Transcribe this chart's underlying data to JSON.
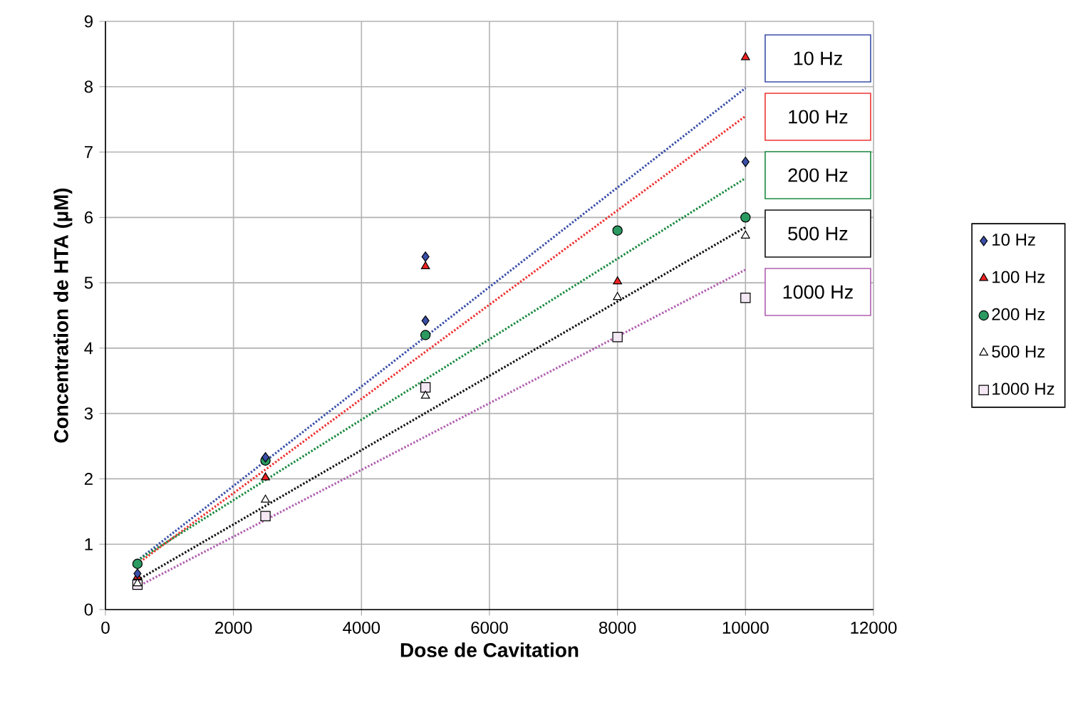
{
  "chart_data": {
    "type": "scatter",
    "xlabel": "Dose de Cavitation",
    "ylabel": "Concentration de HTA (µM)",
    "xlim": [
      0,
      12000
    ],
    "ylim": [
      0,
      9
    ],
    "xticks": [
      0,
      2000,
      4000,
      6000,
      8000,
      10000,
      12000
    ],
    "yticks": [
      0,
      1,
      2,
      3,
      4,
      5,
      6,
      7,
      8,
      9
    ],
    "grid": true,
    "legend": "right",
    "series": [
      {
        "name": "10 Hz",
        "type": "line",
        "line_style": "dotted",
        "marker": "none",
        "color": "#3a4fa8",
        "x": [
          500,
          10000
        ],
        "values": [
          0.75,
          7.98
        ]
      },
      {
        "name": "100 Hz",
        "type": "line",
        "line_style": "dotted",
        "marker": "none",
        "color": "#ee3333",
        "x": [
          500,
          10000
        ],
        "values": [
          0.7,
          7.55
        ]
      },
      {
        "name": "200 Hz",
        "type": "line",
        "line_style": "dotted",
        "marker": "none",
        "color": "#1a8a40",
        "x": [
          500,
          10000
        ],
        "values": [
          0.75,
          6.6
        ]
      },
      {
        "name": "500 Hz",
        "type": "line",
        "line_style": "dotted",
        "marker": "none",
        "color": "#111111",
        "x": [
          500,
          10000
        ],
        "values": [
          0.45,
          5.85
        ]
      },
      {
        "name": "1000 Hz",
        "type": "line",
        "line_style": "dotted",
        "marker": "none",
        "color": "#b060b0",
        "x": [
          500,
          10000
        ],
        "values": [
          0.35,
          5.2
        ]
      },
      {
        "name": "10 Hz",
        "marker": "diamond",
        "color": "#3a4fa8",
        "x": [
          500,
          2500,
          5000,
          5000,
          10000
        ],
        "values": [
          0.55,
          2.33,
          5.4,
          4.42,
          6.85
        ]
      },
      {
        "name": "100 Hz",
        "marker": "triangle",
        "color": "#ee2222",
        "x": [
          500,
          2500,
          5000,
          8000,
          10000
        ],
        "values": [
          0.5,
          2.02,
          5.25,
          5.02,
          8.45
        ]
      },
      {
        "name": "200 Hz",
        "marker": "circle",
        "color": "#2a9a60",
        "x": [
          500,
          2500,
          5000,
          8000,
          10000
        ],
        "values": [
          0.7,
          2.28,
          4.2,
          5.8,
          6.0
        ]
      },
      {
        "name": "500 Hz",
        "marker": "triangle",
        "color": "#ffffff",
        "x": [
          500,
          2500,
          5000,
          8000,
          10000
        ],
        "values": [
          0.4,
          1.68,
          3.27,
          4.78,
          5.72
        ]
      },
      {
        "name": "1000 Hz",
        "marker": "square",
        "color": "#f4e8f4",
        "x": [
          500,
          2500,
          5000,
          8000,
          10000
        ],
        "values": [
          0.38,
          1.43,
          3.4,
          4.17,
          4.77
        ]
      }
    ]
  }
}
